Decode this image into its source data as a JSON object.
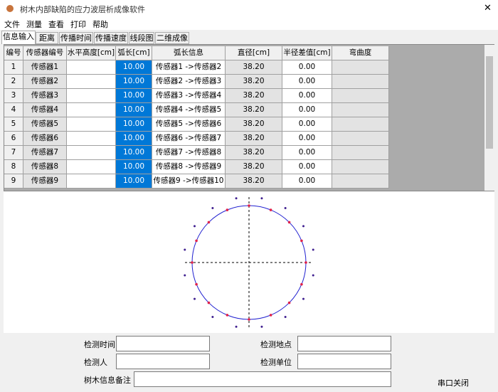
{
  "window": {
    "title": "树木内部缺陷的应力波层析成像软件",
    "close": "✕"
  },
  "menu": [
    "文件",
    "测量",
    "查看",
    "打印",
    "帮助"
  ],
  "tabs": [
    "信息输入",
    "距离",
    "传播时间",
    "传播速度",
    "线段图",
    "二维成像"
  ],
  "table": {
    "headers": [
      "编号",
      "传感器编号",
      "水平高度[cm]",
      "弧长[cm]",
      "弧长信息",
      "直径[cm]",
      "半径差值[cm]",
      "弯曲度"
    ],
    "rows": [
      {
        "no": "1",
        "sensor": "传感器1",
        "arc": "10.00",
        "arc_info": "传感器1 ->传感器2",
        "diameter": "38.20",
        "radius_diff": "0.00"
      },
      {
        "no": "2",
        "sensor": "传感器2",
        "arc": "10.00",
        "arc_info": "传感器2 ->传感器3",
        "diameter": "38.20",
        "radius_diff": "0.00"
      },
      {
        "no": "3",
        "sensor": "传感器3",
        "arc": "10.00",
        "arc_info": "传感器3 ->传感器4",
        "diameter": "38.20",
        "radius_diff": "0.00"
      },
      {
        "no": "4",
        "sensor": "传感器4",
        "arc": "10.00",
        "arc_info": "传感器4 ->传感器5",
        "diameter": "38.20",
        "radius_diff": "0.00"
      },
      {
        "no": "5",
        "sensor": "传感器5",
        "arc": "10.00",
        "arc_info": "传感器5 ->传感器6",
        "diameter": "38.20",
        "radius_diff": "0.00"
      },
      {
        "no": "6",
        "sensor": "传感器6",
        "arc": "10.00",
        "arc_info": "传感器6 ->传感器7",
        "diameter": "38.20",
        "radius_diff": "0.00"
      },
      {
        "no": "7",
        "sensor": "传感器7",
        "arc": "10.00",
        "arc_info": "传感器7 ->传感器8",
        "diameter": "38.20",
        "radius_diff": "0.00"
      },
      {
        "no": "8",
        "sensor": "传感器8",
        "arc": "10.00",
        "arc_info": "传感器8 ->传感器9",
        "diameter": "38.20",
        "radius_diff": "0.00"
      },
      {
        "no": "9",
        "sensor": "传感器9",
        "arc": "10.00",
        "arc_info": "传感器9 ->传感器10",
        "diameter": "38.20",
        "radius_diff": "0.00"
      }
    ]
  },
  "form": {
    "time": "检测时间",
    "place": "检测地点",
    "person": "检测人",
    "unit": "检测单位",
    "note": "树木信息备注",
    "serial": "串口关闭"
  }
}
